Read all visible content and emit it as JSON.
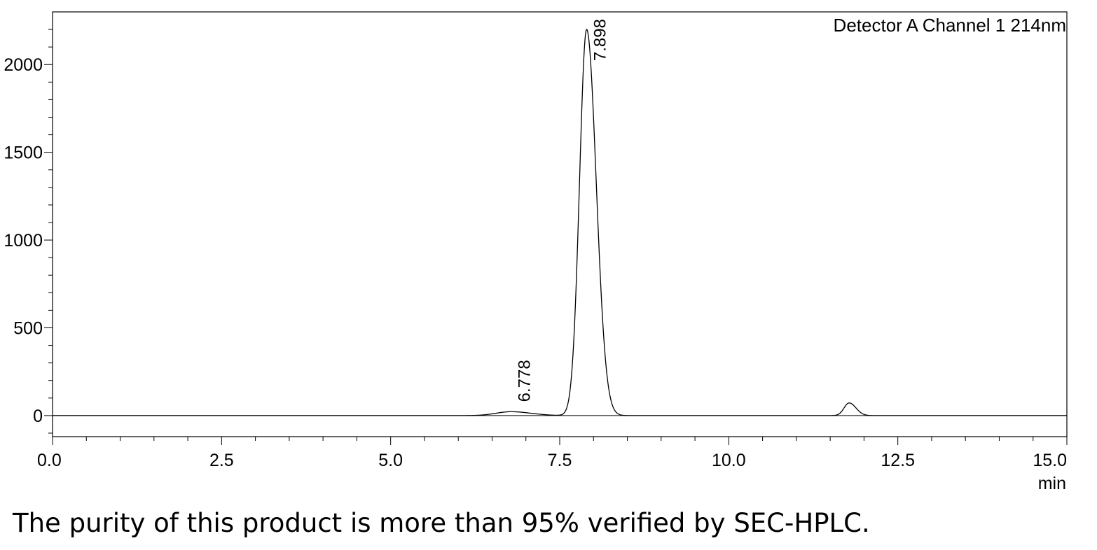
{
  "chart_data": {
    "type": "line",
    "title": "",
    "legend_text": "Detector A Channel 1 214nm",
    "xlabel": "min",
    "ylabel": "",
    "xlim": [
      0,
      15
    ],
    "ylim": [
      -120,
      2300
    ],
    "x_ticks": [
      0,
      2.5,
      5,
      7.5,
      10,
      12.5,
      15
    ],
    "x_tick_labels": [
      "0.0",
      "2.5",
      "5.0",
      "7.5",
      "10.0",
      "12.5",
      "15.0"
    ],
    "y_ticks": [
      0,
      500,
      1000,
      1500,
      2000
    ],
    "y_tick_labels": [
      "0",
      "500",
      "1000",
      "1500",
      "2000"
    ],
    "grid": false,
    "series": [
      {
        "name": "",
        "baseline": 0,
        "peaks": [
          {
            "rt": 6.778,
            "height": 22,
            "width": 0.22,
            "label": "6.778"
          },
          {
            "rt": 7.898,
            "height": 2200,
            "width": 0.105,
            "label": "7.898"
          },
          {
            "rt": 11.78,
            "height": 72,
            "width": 0.075,
            "label": ""
          }
        ]
      }
    ],
    "caption": "The purity of this product is more than 95% verified by SEC-HPLC."
  }
}
